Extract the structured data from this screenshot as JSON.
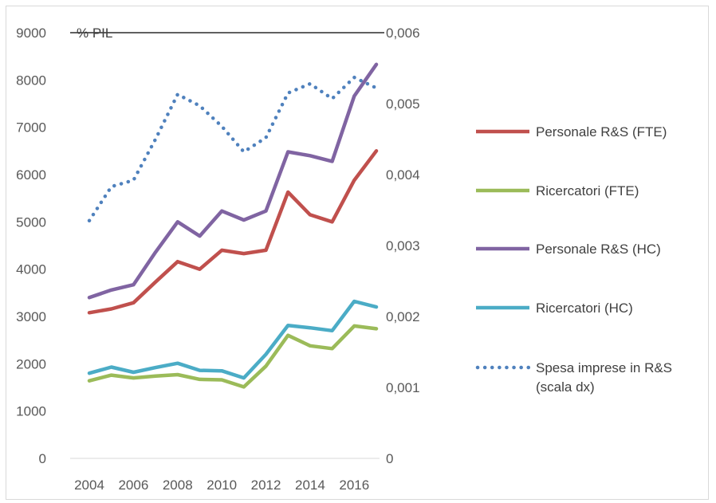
{
  "chart_data": {
    "type": "line",
    "x": [
      2004,
      2005,
      2006,
      2007,
      2008,
      2009,
      2010,
      2011,
      2012,
      2013,
      2014,
      2015,
      2016,
      2017
    ],
    "x_tick_labels": [
      "2004",
      "2006",
      "2008",
      "2010",
      "2012",
      "2014",
      "2016"
    ],
    "y_left_ticks": [
      "0",
      "1000",
      "2000",
      "3000",
      "4000",
      "5000",
      "6000",
      "7000",
      "8000",
      "9000"
    ],
    "y_right_ticks": [
      "0",
      "0,001",
      "0,002",
      "0,003",
      "0,004",
      "0,005",
      "0,006"
    ],
    "ylim_left": [
      0,
      9000
    ],
    "ylim_right": [
      0,
      0.006
    ],
    "right_axis_label": "% PIL",
    "grid": false,
    "legend_position": "right",
    "series": [
      {
        "name": "Personale R&S (FTE)",
        "axis": "left",
        "style": "solid",
        "color": "#c0504d",
        "values": [
          3080,
          3160,
          3290,
          3730,
          4160,
          4000,
          4400,
          4330,
          4400,
          5630,
          5150,
          5000,
          5880,
          6500
        ]
      },
      {
        "name": "Ricercatori (FTE)",
        "axis": "left",
        "style": "solid",
        "color": "#9bbb59",
        "values": [
          1640,
          1760,
          1700,
          1740,
          1770,
          1670,
          1660,
          1510,
          1950,
          2600,
          2380,
          2320,
          2800,
          2740
        ]
      },
      {
        "name": "Personale R&S (HC)",
        "axis": "left",
        "style": "solid",
        "color": "#8064a2",
        "values": [
          3400,
          3560,
          3670,
          4360,
          5000,
          4700,
          5230,
          5040,
          5230,
          6480,
          6400,
          6280,
          7660,
          8330
        ]
      },
      {
        "name": "Ricercatori (HC)",
        "axis": "left",
        "style": "solid",
        "color": "#4bacc6",
        "values": [
          1800,
          1930,
          1820,
          1920,
          2010,
          1860,
          1850,
          1700,
          2200,
          2810,
          2760,
          2700,
          3320,
          3200
        ]
      },
      {
        "name": "Spesa impresa in R&S (scala dx)",
        "name_lines": [
          "Spesa imprese in R&S",
          "(scala dx)"
        ],
        "axis": "right",
        "style": "dotted",
        "color": "#4f81bd",
        "values": [
          0.00335,
          0.00383,
          0.00392,
          0.0045,
          0.00513,
          0.00497,
          0.00468,
          0.00432,
          0.00452,
          0.00515,
          0.00528,
          0.00507,
          0.00537,
          0.00522
        ]
      }
    ]
  }
}
